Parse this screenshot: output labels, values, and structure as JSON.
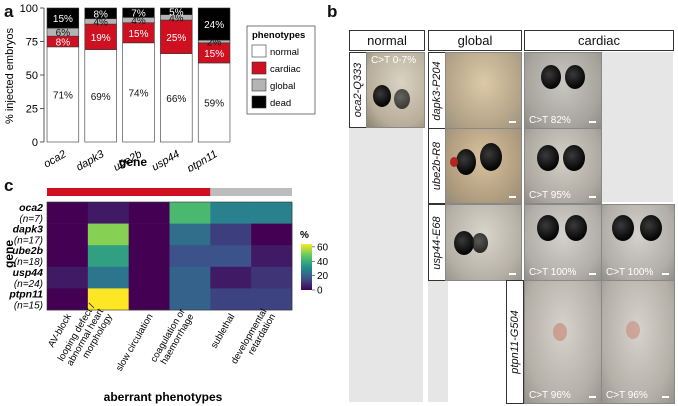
{
  "panel_labels": {
    "a": "a",
    "b": "b",
    "c": "c"
  },
  "chart_data": [
    {
      "type": "bar",
      "stacked": true,
      "ylabel": "% injected embryos",
      "xlabel": "gene",
      "ylim": [
        0,
        100
      ],
      "yticks": [
        "0",
        "25",
        "50",
        "75",
        "100"
      ],
      "categories": [
        "oca2",
        "dapk3",
        "ube2b",
        "usp44",
        "ptpn11"
      ],
      "series": [
        {
          "name": "normal",
          "color": "#ffffff",
          "values": [
            71,
            69,
            74,
            66,
            59
          ],
          "labels": [
            "71%",
            "69%",
            "74%",
            "66%",
            "59%"
          ]
        },
        {
          "name": "cardiac",
          "color": "#cf1020",
          "values": [
            8,
            19,
            15,
            25,
            15
          ],
          "labels": [
            "8%",
            "19%",
            "15%",
            "25%",
            "15%"
          ]
        },
        {
          "name": "global",
          "color": "#b4b4b4",
          "values": [
            6,
            4,
            4,
            4,
            2
          ],
          "labels": [
            "6%",
            "4%",
            "4%",
            "4%",
            "2%"
          ]
        },
        {
          "name": "dead",
          "color": "#000000",
          "values": [
            15,
            8,
            7,
            5,
            24
          ],
          "labels": [
            "15%",
            "8%",
            "7%",
            "5%",
            "24%"
          ]
        }
      ],
      "legend": {
        "title": "phenotypes",
        "placement": "right"
      }
    },
    {
      "type": "heatmap",
      "ylabel": "gene",
      "xlabel": "aberrant phenotypes",
      "rows": [
        {
          "gene": "oca2",
          "n": "(n=7)"
        },
        {
          "gene": "dapk3",
          "n": "(n=17)"
        },
        {
          "gene": "ube2b",
          "n": "(n=18)"
        },
        {
          "gene": "usp44",
          "n": "(n=24)"
        },
        {
          "gene": "ptpn11",
          "n": "(n=15)"
        }
      ],
      "columns": [
        "AV-block",
        "looping defect / abnormal heart morphology",
        "slow circulation",
        "coagulation or haemorrhage",
        "sublethal",
        "developmental retardation"
      ],
      "column_groups": [
        {
          "span": 4,
          "color": "#cf1020"
        },
        {
          "span": 2,
          "color": "#bdbdbd"
        }
      ],
      "values": [
        [
          0,
          5,
          0,
          43,
          28,
          28
        ],
        [
          0,
          52,
          0,
          23,
          12,
          0
        ],
        [
          0,
          36,
          0,
          16,
          16,
          5
        ],
        [
          5,
          25,
          0,
          20,
          5,
          10
        ],
        [
          0,
          64,
          0,
          20,
          13,
          13
        ]
      ],
      "colorbar": {
        "label": "%",
        "ticks": [
          0,
          20,
          40,
          60
        ],
        "range": [
          0,
          64
        ]
      }
    }
  ],
  "panel_b": {
    "headers": {
      "normal": "normal",
      "global": "global",
      "cardiac": "cardiac"
    },
    "row_labels": [
      "oca2-Q333",
      "dapk3-P204",
      "ube2b-R8",
      "usp44-E68",
      "ptpn11-G504"
    ],
    "captions": {
      "normal": "C>T 0-7%",
      "dapk3_cardiac": "C>T 82%",
      "ube2b_cardiac": "C>T 95%",
      "usp44_cardiac": "C>T 100%",
      "usp44_cardiac2": "C>T 100%",
      "ptpn11_cardiac": "C>T 96%",
      "ptpn11_cardiac2": "C>T 96%"
    }
  }
}
